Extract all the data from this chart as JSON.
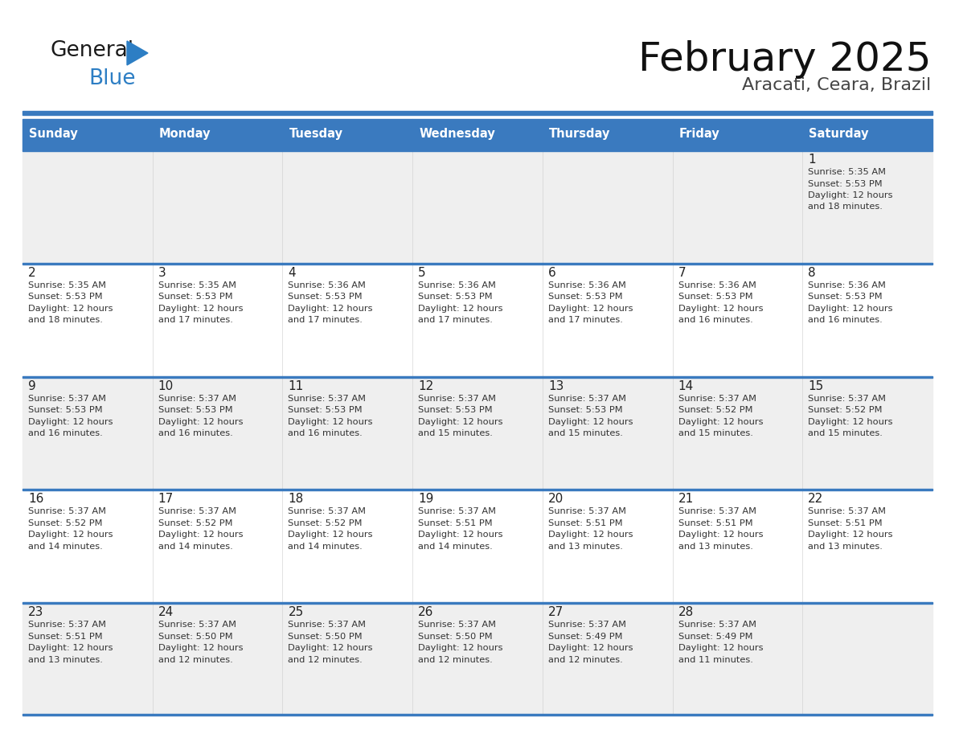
{
  "title": "February 2025",
  "subtitle": "Aracati, Ceara, Brazil",
  "header_color": "#3a7abf",
  "header_text_color": "#ffffff",
  "days_of_week": [
    "Sunday",
    "Monday",
    "Tuesday",
    "Wednesday",
    "Thursday",
    "Friday",
    "Saturday"
  ],
  "background_color": "#ffffff",
  "cell_bg_even": "#efefef",
  "cell_bg_odd": "#ffffff",
  "border_color": "#3a7abf",
  "day_num_color": "#222222",
  "info_text_color": "#333333",
  "calendar": [
    [
      null,
      null,
      null,
      null,
      null,
      null,
      {
        "day": 1,
        "sunrise": "5:35 AM",
        "sunset": "5:53 PM",
        "daylight": "12 hours and 18 minutes."
      }
    ],
    [
      {
        "day": 2,
        "sunrise": "5:35 AM",
        "sunset": "5:53 PM",
        "daylight": "12 hours and 18 minutes."
      },
      {
        "day": 3,
        "sunrise": "5:35 AM",
        "sunset": "5:53 PM",
        "daylight": "12 hours and 17 minutes."
      },
      {
        "day": 4,
        "sunrise": "5:36 AM",
        "sunset": "5:53 PM",
        "daylight": "12 hours and 17 minutes."
      },
      {
        "day": 5,
        "sunrise": "5:36 AM",
        "sunset": "5:53 PM",
        "daylight": "12 hours and 17 minutes."
      },
      {
        "day": 6,
        "sunrise": "5:36 AM",
        "sunset": "5:53 PM",
        "daylight": "12 hours and 17 minutes."
      },
      {
        "day": 7,
        "sunrise": "5:36 AM",
        "sunset": "5:53 PM",
        "daylight": "12 hours and 16 minutes."
      },
      {
        "day": 8,
        "sunrise": "5:36 AM",
        "sunset": "5:53 PM",
        "daylight": "12 hours and 16 minutes."
      }
    ],
    [
      {
        "day": 9,
        "sunrise": "5:37 AM",
        "sunset": "5:53 PM",
        "daylight": "12 hours and 16 minutes."
      },
      {
        "day": 10,
        "sunrise": "5:37 AM",
        "sunset": "5:53 PM",
        "daylight": "12 hours and 16 minutes."
      },
      {
        "day": 11,
        "sunrise": "5:37 AM",
        "sunset": "5:53 PM",
        "daylight": "12 hours and 16 minutes."
      },
      {
        "day": 12,
        "sunrise": "5:37 AM",
        "sunset": "5:53 PM",
        "daylight": "12 hours and 15 minutes."
      },
      {
        "day": 13,
        "sunrise": "5:37 AM",
        "sunset": "5:53 PM",
        "daylight": "12 hours and 15 minutes."
      },
      {
        "day": 14,
        "sunrise": "5:37 AM",
        "sunset": "5:52 PM",
        "daylight": "12 hours and 15 minutes."
      },
      {
        "day": 15,
        "sunrise": "5:37 AM",
        "sunset": "5:52 PM",
        "daylight": "12 hours and 15 minutes."
      }
    ],
    [
      {
        "day": 16,
        "sunrise": "5:37 AM",
        "sunset": "5:52 PM",
        "daylight": "12 hours and 14 minutes."
      },
      {
        "day": 17,
        "sunrise": "5:37 AM",
        "sunset": "5:52 PM",
        "daylight": "12 hours and 14 minutes."
      },
      {
        "day": 18,
        "sunrise": "5:37 AM",
        "sunset": "5:52 PM",
        "daylight": "12 hours and 14 minutes."
      },
      {
        "day": 19,
        "sunrise": "5:37 AM",
        "sunset": "5:51 PM",
        "daylight": "12 hours and 14 minutes."
      },
      {
        "day": 20,
        "sunrise": "5:37 AM",
        "sunset": "5:51 PM",
        "daylight": "12 hours and 13 minutes."
      },
      {
        "day": 21,
        "sunrise": "5:37 AM",
        "sunset": "5:51 PM",
        "daylight": "12 hours and 13 minutes."
      },
      {
        "day": 22,
        "sunrise": "5:37 AM",
        "sunset": "5:51 PM",
        "daylight": "12 hours and 13 minutes."
      }
    ],
    [
      {
        "day": 23,
        "sunrise": "5:37 AM",
        "sunset": "5:51 PM",
        "daylight": "12 hours and 13 minutes."
      },
      {
        "day": 24,
        "sunrise": "5:37 AM",
        "sunset": "5:50 PM",
        "daylight": "12 hours and 12 minutes."
      },
      {
        "day": 25,
        "sunrise": "5:37 AM",
        "sunset": "5:50 PM",
        "daylight": "12 hours and 12 minutes."
      },
      {
        "day": 26,
        "sunrise": "5:37 AM",
        "sunset": "5:50 PM",
        "daylight": "12 hours and 12 minutes."
      },
      {
        "day": 27,
        "sunrise": "5:37 AM",
        "sunset": "5:49 PM",
        "daylight": "12 hours and 12 minutes."
      },
      {
        "day": 28,
        "sunrise": "5:37 AM",
        "sunset": "5:49 PM",
        "daylight": "12 hours and 11 minutes."
      },
      null
    ]
  ]
}
